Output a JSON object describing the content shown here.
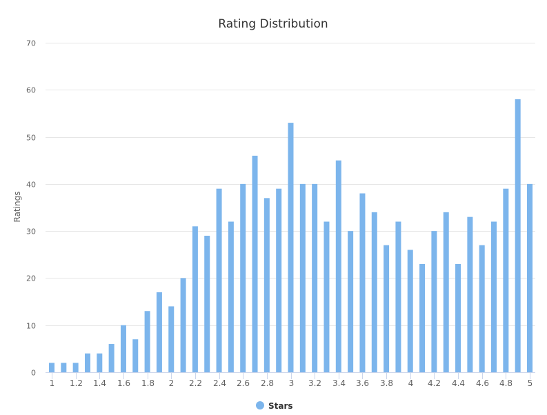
{
  "chart_data": {
    "type": "bar",
    "title": "Rating Distribution",
    "xlabel": "",
    "ylabel": "Ratings",
    "x": [
      1,
      1.1,
      1.2,
      1.3,
      1.4,
      1.5,
      1.6,
      1.7,
      1.8,
      1.9,
      2,
      2.1,
      2.2,
      2.3,
      2.4,
      2.5,
      2.6,
      2.7,
      2.8,
      2.9,
      3,
      3.1,
      3.2,
      3.3,
      3.4,
      3.5,
      3.6,
      3.7,
      3.8,
      3.9,
      4,
      4.1,
      4.2,
      4.3,
      4.4,
      4.5,
      4.6,
      4.7,
      4.8,
      4.9,
      5
    ],
    "series": [
      {
        "name": "Stars",
        "color": "#7cb5ec",
        "values": [
          2,
          2,
          2,
          4,
          4,
          6,
          10,
          7,
          13,
          17,
          14,
          20,
          31,
          29,
          39,
          32,
          40,
          46,
          37,
          39,
          53,
          40,
          40,
          32,
          45,
          30,
          38,
          34,
          27,
          32,
          26,
          23,
          30,
          34,
          23,
          33,
          27,
          32,
          39,
          58,
          40
        ]
      }
    ],
    "xlim": [
      1,
      5
    ],
    "ylim": [
      0,
      70
    ],
    "yticks": [
      0,
      10,
      20,
      30,
      40,
      50,
      60,
      70
    ],
    "xticks": [
      "1",
      "1.2",
      "1.4",
      "1.6",
      "1.8",
      "2",
      "2.2",
      "2.4",
      "2.6",
      "2.8",
      "3",
      "3.2",
      "3.4",
      "3.6",
      "3.8",
      "4",
      "4.2",
      "4.4",
      "4.6",
      "4.8",
      "5"
    ],
    "grid": true,
    "legend_position": "bottom-center"
  }
}
